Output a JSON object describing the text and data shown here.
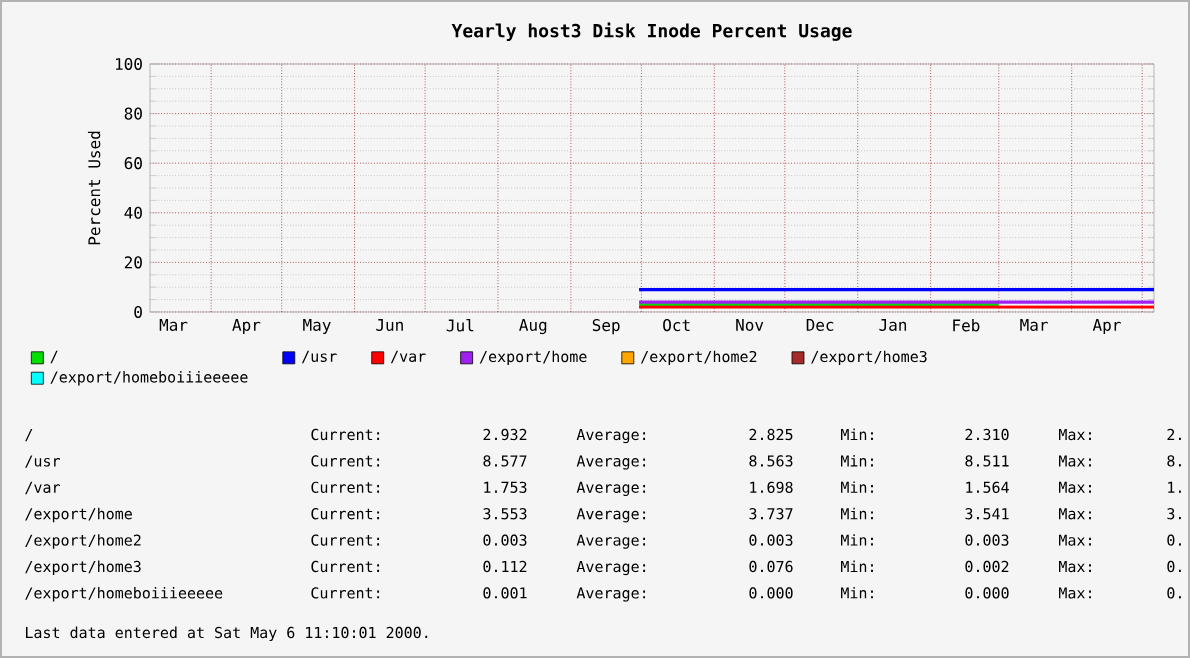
{
  "chart_data": {
    "type": "line",
    "title": "Yearly host3 Disk Inode Percent Usage",
    "ylabel": "Percent Used",
    "xlim": [
      "1999-03-06",
      "2000-05-06"
    ],
    "ylim": [
      0,
      100
    ],
    "yticks": [
      0,
      20,
      40,
      60,
      80,
      100
    ],
    "xticks": [
      {
        "value": "1999-03-16",
        "label": "Mar"
      },
      {
        "value": "1999-04-01",
        "label": null
      },
      {
        "value": "1999-04-16",
        "label": "Apr"
      },
      {
        "value": "1999-05-01",
        "label": null
      },
      {
        "value": "1999-05-16",
        "label": "May"
      },
      {
        "value": "1999-06-01",
        "label": null
      },
      {
        "value": "1999-06-16",
        "label": "Jun"
      },
      {
        "value": "1999-07-01",
        "label": null
      },
      {
        "value": "1999-07-16",
        "label": "Jul"
      },
      {
        "value": "1999-08-01",
        "label": null
      },
      {
        "value": "1999-08-16",
        "label": "Aug"
      },
      {
        "value": "1999-09-01",
        "label": null
      },
      {
        "value": "1999-09-16",
        "label": "Sep"
      },
      {
        "value": "1999-10-01",
        "label": null
      },
      {
        "value": "1999-10-16",
        "label": "Oct"
      },
      {
        "value": "1999-11-01",
        "label": null
      },
      {
        "value": "1999-11-16",
        "label": "Nov"
      },
      {
        "value": "1999-12-01",
        "label": null
      },
      {
        "value": "1999-12-16",
        "label": "Dec"
      },
      {
        "value": "2000-01-01",
        "label": null
      },
      {
        "value": "2000-01-16",
        "label": "Jan"
      },
      {
        "value": "2000-02-01",
        "label": null
      },
      {
        "value": "2000-02-16",
        "label": "Feb"
      },
      {
        "value": "2000-03-01",
        "label": null
      },
      {
        "value": "2000-03-16",
        "label": "Mar"
      },
      {
        "value": "2000-04-01",
        "label": null
      },
      {
        "value": "2000-04-16",
        "label": "Apr"
      },
      {
        "value": "2000-05-01",
        "label": null
      }
    ],
    "grid": true,
    "legend": "bottom",
    "marker": "none",
    "line_style": "solid",
    "series": [
      {
        "name": "/",
        "color": "#00e000",
        "x": [
          "1999-09-30",
          "1999-12-15",
          "2000-03-01"
        ],
        "values": [
          3,
          3,
          3
        ]
      },
      {
        "name": "/usr",
        "color": "#0000ff",
        "x": [
          "1999-09-30",
          "2000-01-15",
          "2000-05-06"
        ],
        "values": [
          9,
          9,
          9
        ]
      },
      {
        "name": "/var",
        "color": "#ff0000",
        "x": [
          "1999-09-30",
          "2000-01-15",
          "2000-05-06"
        ],
        "values": [
          2,
          2,
          2
        ]
      },
      {
        "name": "/export/home",
        "color": "#a020f0",
        "x": [
          "1999-09-30",
          "2000-01-15",
          "2000-05-06"
        ],
        "values": [
          4,
          4,
          4
        ]
      },
      {
        "name": "/export/home2",
        "color": "#ffa500",
        "values": [
          null
        ]
      },
      {
        "name": "/export/home3",
        "color": "#a52a2a",
        "values": [
          null
        ]
      },
      {
        "name": "/export/homeboiiieeeee",
        "color": "#00ffff",
        "values": [
          null
        ]
      }
    ],
    "annotations": [
      "/",
      "Current:",
      "2.932",
      "Average:",
      "2.825",
      "Min:",
      "2.310",
      "Max:",
      "2.",
      "/usr",
      "Current:",
      "8.577",
      "Average:",
      "8.563",
      "Min:",
      "8.511",
      "Max:",
      "8.",
      "/var",
      "Current:",
      "1.753",
      "Average:",
      "1.698",
      "Min:",
      "1.564",
      "Max:",
      "1.",
      "/export/home",
      "Current:",
      "3.553",
      "Average:",
      "3.737",
      "Min:",
      "3.541",
      "Max:",
      "3.",
      "/export/home2",
      "Current:",
      "0.003",
      "Average:",
      "0.003",
      "Min:",
      "0.003",
      "Max:",
      "0.",
      "/export/home3",
      "Current:",
      "0.112",
      "Average:",
      "0.076",
      "Min:",
      "0.002",
      "Max:",
      "0.",
      "/export/homeboiiieeeee",
      "Current:",
      "0.001",
      "Average:",
      "0.000",
      "Min:",
      "0.000",
      "Max:",
      "0.",
      "Last data entered at Sat May  6 11:10:01 2000."
    ]
  }
}
